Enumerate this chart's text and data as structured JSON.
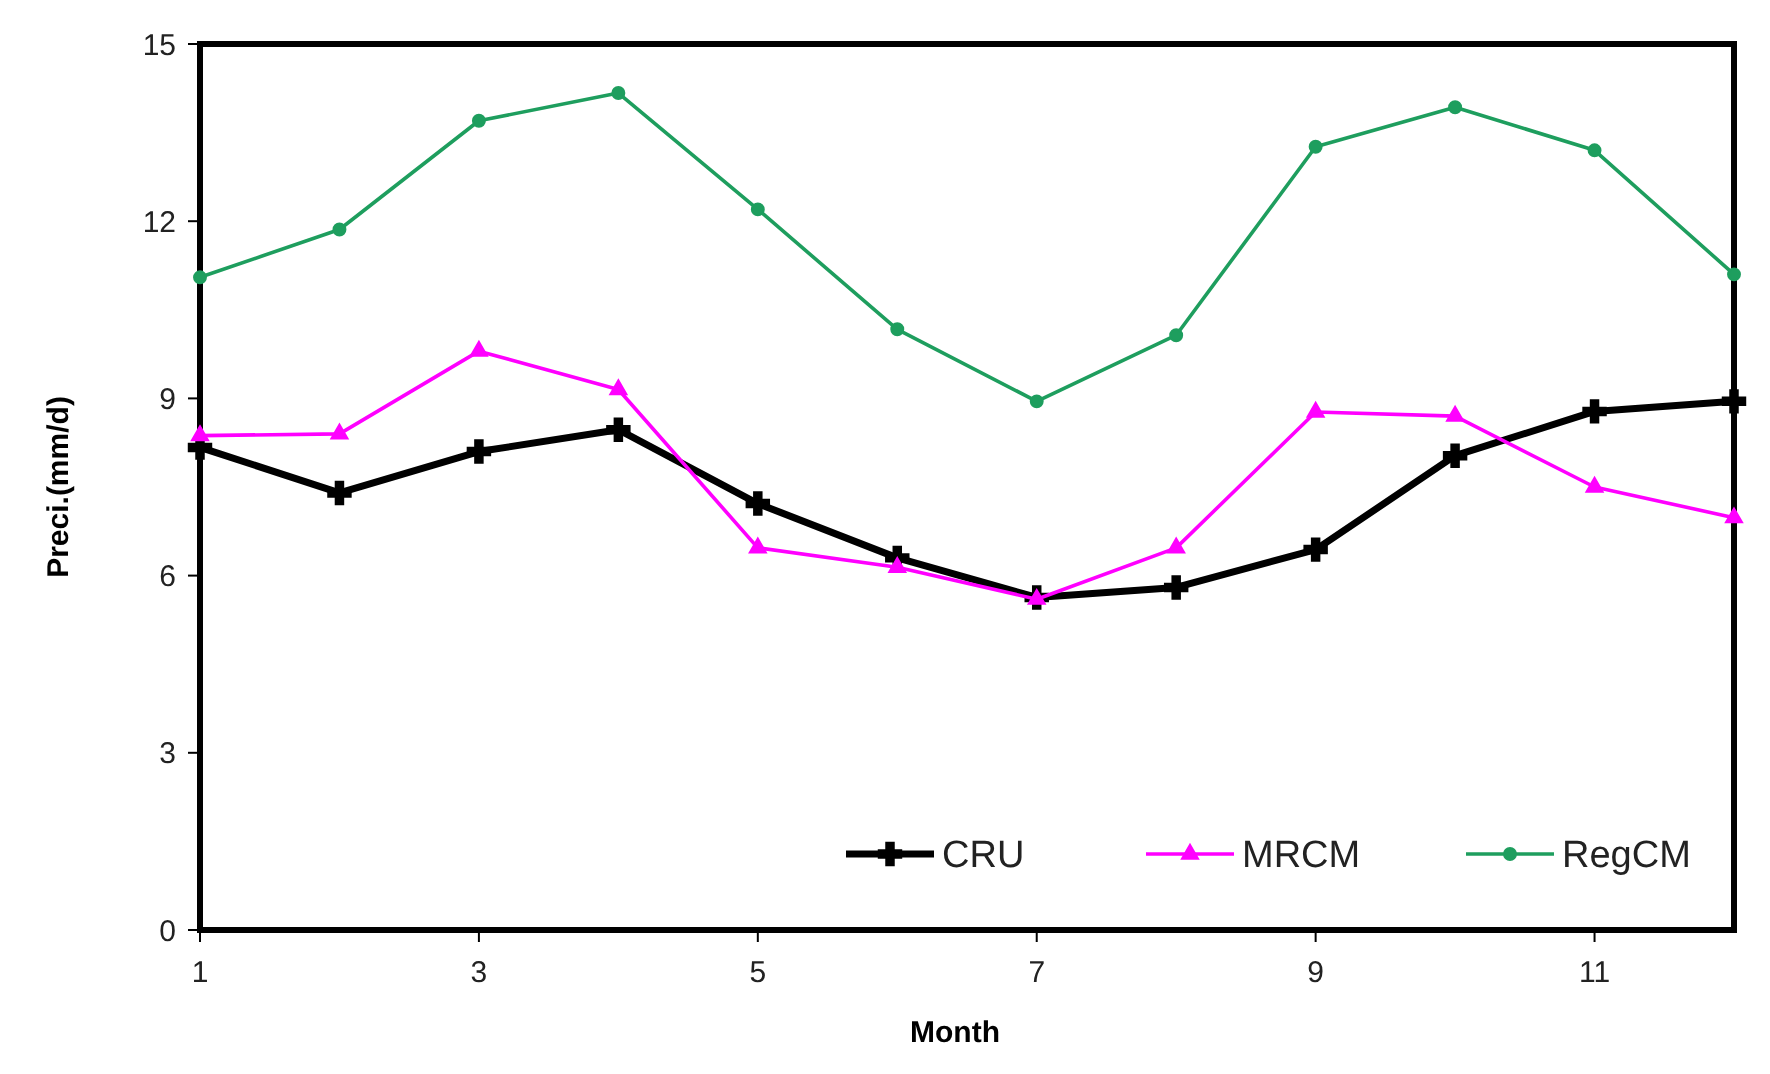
{
  "chart_data": {
    "type": "line",
    "xlabel": "Month",
    "ylabel": "Preci.(mm/d)",
    "x": [
      1,
      2,
      3,
      4,
      5,
      6,
      7,
      8,
      9,
      10,
      11,
      12
    ],
    "xlim": [
      1,
      12
    ],
    "xticks": [
      1,
      3,
      5,
      7,
      9,
      11
    ],
    "ylim": [
      0,
      15
    ],
    "yticks": [
      0,
      3,
      6,
      9,
      12,
      15
    ],
    "grid": false,
    "legend": "bottom right",
    "line_style": "solid",
    "series": [
      {
        "name": "CRU",
        "color": "#000000",
        "marker": "cross",
        "values": [
          8.17,
          7.4,
          8.1,
          8.47,
          7.22,
          6.3,
          5.63,
          5.8,
          6.44,
          8.03,
          8.78,
          8.95
        ]
      },
      {
        "name": "MRCM",
        "color": "#ff00ff",
        "marker": "triangle",
        "values": [
          8.37,
          8.4,
          9.8,
          9.15,
          6.47,
          6.14,
          5.6,
          6.47,
          8.77,
          8.7,
          7.5,
          6.98
        ]
      },
      {
        "name": "RegCM",
        "color": "#1e9e5e",
        "marker": "circle",
        "values": [
          11.05,
          11.86,
          13.7,
          14.17,
          12.2,
          10.17,
          8.95,
          10.07,
          13.26,
          13.93,
          13.2,
          11.1
        ]
      }
    ]
  }
}
